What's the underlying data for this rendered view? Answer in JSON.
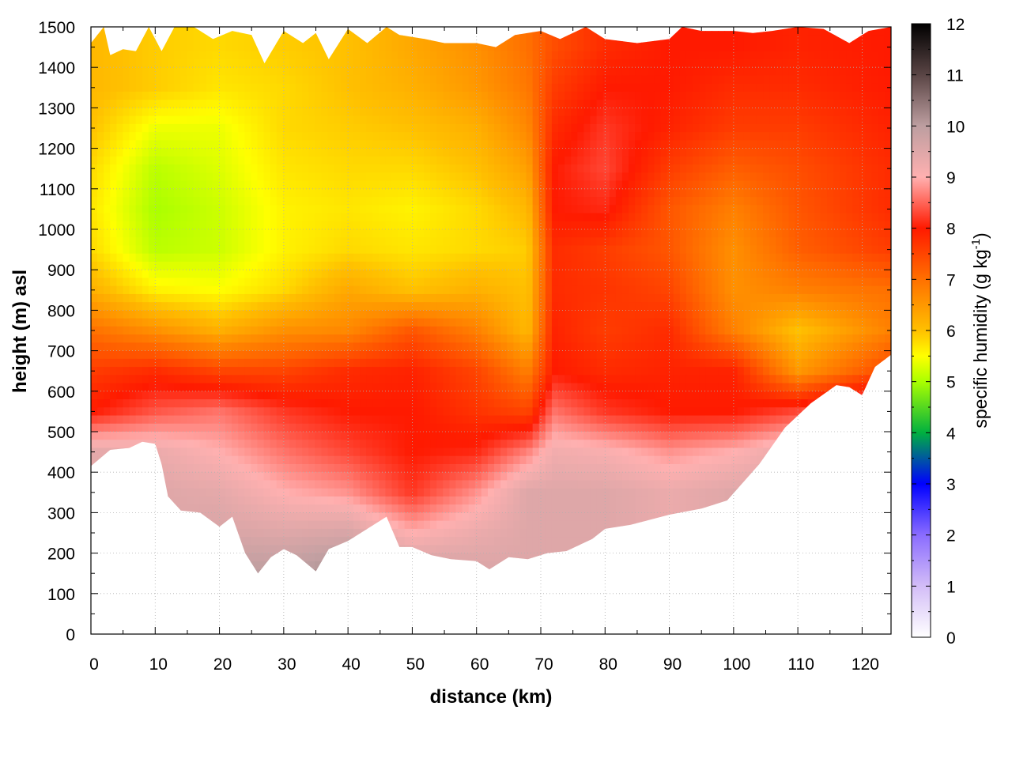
{
  "chart_data": {
    "type": "heatmap",
    "title": "",
    "xlabel": "distance (km)",
    "ylabel": "height (m) asl",
    "colorbar_label": {
      "prefix": "specific humidity (g kg",
      "superscript": "-1",
      "suffix": ")"
    },
    "xlim": [
      0,
      124.5
    ],
    "ylim": [
      0,
      1500
    ],
    "color_range": [
      0,
      12
    ],
    "x_ticks": [
      "0",
      "10",
      "20",
      "30",
      "40",
      "50",
      "60",
      "70",
      "80",
      "90",
      "100",
      "110",
      "120"
    ],
    "y_ticks": [
      "0",
      "100",
      "200",
      "300",
      "400",
      "500",
      "600",
      "700",
      "800",
      "900",
      "1000",
      "1100",
      "1200",
      "1300",
      "1400",
      "1500"
    ],
    "colorbar_ticks": [
      "0",
      "1",
      "2",
      "3",
      "4",
      "5",
      "6",
      "7",
      "8",
      "9",
      "10",
      "11",
      "12"
    ],
    "grid": true,
    "colormap": [
      [
        0,
        "#ffffff"
      ],
      [
        1,
        "#d3bdf7"
      ],
      [
        2,
        "#8a6cff"
      ],
      [
        3,
        "#0000ff"
      ],
      [
        4,
        "#00b040"
      ],
      [
        5,
        "#aaff00"
      ],
      [
        5.5,
        "#ffff00"
      ],
      [
        6,
        "#ffc000"
      ],
      [
        7,
        "#ff7000"
      ],
      [
        8,
        "#ff1a00"
      ],
      [
        9,
        "#ffb0b0"
      ],
      [
        10,
        "#bd9ea0"
      ],
      [
        11,
        "#5a4545"
      ],
      [
        12,
        "#000000"
      ]
    ],
    "ground_profile": {
      "x": [
        0,
        3,
        6,
        8,
        10,
        11,
        12,
        14,
        17,
        20,
        22,
        24,
        26,
        28,
        30,
        32,
        35,
        37,
        40,
        42,
        44,
        46,
        48,
        50,
        53,
        56,
        60,
        62,
        65,
        68,
        71,
        74,
        78,
        80,
        84,
        90,
        95,
        99,
        104,
        108,
        112,
        116,
        118,
        120,
        122,
        124.5
      ],
      "height_m": [
        415,
        455,
        460,
        475,
        470,
        420,
        340,
        305,
        300,
        265,
        290,
        200,
        150,
        190,
        210,
        195,
        155,
        210,
        230,
        250,
        270,
        290,
        215,
        215,
        195,
        185,
        180,
        160,
        190,
        185,
        200,
        205,
        235,
        260,
        270,
        295,
        310,
        330,
        420,
        510,
        570,
        615,
        610,
        590,
        660,
        690
      ]
    },
    "top_profile": {
      "x": [
        0,
        2,
        3,
        5,
        7,
        9,
        11,
        13,
        16,
        19,
        22,
        25,
        27,
        30,
        33,
        35,
        37,
        40,
        43,
        46,
        48,
        52,
        55,
        60,
        63,
        66,
        70,
        73,
        77,
        80,
        85,
        90,
        92,
        95,
        100,
        103,
        106,
        110,
        114,
        118,
        121,
        124.5
      ],
      "height_m": [
        1460,
        1500,
        1430,
        1445,
        1440,
        1500,
        1440,
        1500,
        1500,
        1470,
        1490,
        1480,
        1410,
        1490,
        1460,
        1485,
        1420,
        1495,
        1460,
        1500,
        1480,
        1470,
        1460,
        1460,
        1450,
        1480,
        1490,
        1470,
        1500,
        1470,
        1460,
        1470,
        1500,
        1490,
        1490,
        1485,
        1490,
        1500,
        1495,
        1460,
        1490,
        1500
      ]
    },
    "layers": [
      {
        "height_m": 0,
        "values": [
          9.5,
          9.5,
          10,
          10,
          10.3,
          9.8,
          9.6,
          9.5,
          9.5,
          9.5,
          9.3,
          9.5,
          9.5,
          10.3
        ]
      },
      {
        "height_m": 150,
        "values": [
          9.5,
          9.5,
          10,
          10,
          10.3,
          9.8,
          9.6,
          9.5,
          9.5,
          9.5,
          9.3,
          9.5,
          9.5,
          10.3
        ]
      },
      {
        "height_m": 250,
        "values": [
          9.5,
          9.5,
          9.6,
          9.5,
          9.6,
          9.0,
          9.3,
          9.5,
          9.5,
          9.5,
          9.3,
          9.5,
          9.5,
          10.0
        ]
      },
      {
        "height_m": 350,
        "values": [
          9.5,
          9.5,
          9.4,
          9.0,
          8.8,
          8.2,
          8.8,
          9.5,
          9.5,
          9.5,
          9.3,
          9.5,
          9.5,
          9.8
        ]
      },
      {
        "height_m": 450,
        "values": [
          9.4,
          9.3,
          9.0,
          8.6,
          8.3,
          8.0,
          8.1,
          8.7,
          9.2,
          9.1,
          8.8,
          9.0,
          9.4,
          9.5
        ]
      },
      {
        "height_m": 550,
        "values": [
          8.0,
          8.4,
          8.6,
          8.2,
          8.0,
          8.0,
          7.7,
          7.5,
          8.6,
          8.2,
          8.0,
          8.0,
          8.3,
          9.0
        ]
      },
      {
        "height_m": 650,
        "values": [
          7.6,
          7.8,
          7.5,
          7.5,
          7.8,
          7.9,
          7.5,
          6.8,
          8.0,
          7.8,
          7.9,
          7.9,
          6.5,
          7.5
        ]
      },
      {
        "height_m": 750,
        "values": [
          7.0,
          6.6,
          6.2,
          6.6,
          6.7,
          7.3,
          6.8,
          6.1,
          7.9,
          7.6,
          7.8,
          6.8,
          6.0,
          6.8
        ]
      },
      {
        "height_m": 850,
        "values": [
          6.2,
          5.6,
          5.5,
          5.8,
          6.3,
          6.0,
          6.2,
          6.0,
          7.8,
          7.7,
          7.5,
          6.6,
          6.8,
          7.0
        ]
      },
      {
        "height_m": 950,
        "values": [
          5.8,
          5.1,
          5.2,
          5.6,
          5.8,
          5.7,
          5.8,
          5.9,
          7.8,
          7.6,
          7.3,
          6.6,
          7.2,
          7.6
        ]
      },
      {
        "height_m": 1050,
        "values": [
          5.7,
          5.0,
          5.2,
          5.6,
          5.7,
          5.6,
          5.8,
          6.1,
          8.0,
          8.1,
          7.3,
          6.8,
          7.3,
          7.8
        ]
      },
      {
        "height_m": 1150,
        "values": [
          5.8,
          5.1,
          5.3,
          5.7,
          5.8,
          5.8,
          6.0,
          6.4,
          8.0,
          8.3,
          7.6,
          7.2,
          7.4,
          7.8
        ]
      },
      {
        "height_m": 1250,
        "values": [
          6.0,
          5.4,
          5.4,
          5.8,
          5.9,
          6.0,
          6.2,
          6.7,
          7.8,
          8.2,
          7.9,
          7.6,
          7.6,
          7.9
        ]
      },
      {
        "height_m": 1350,
        "values": [
          6.1,
          5.9,
          5.7,
          5.8,
          6.0,
          6.2,
          6.5,
          6.9,
          7.6,
          8.0,
          8.0,
          7.8,
          7.8,
          8.0
        ]
      },
      {
        "height_m": 1450,
        "values": [
          6.1,
          5.9,
          5.8,
          5.9,
          6.0,
          6.3,
          6.6,
          7.0,
          7.4,
          7.8,
          8.0,
          8.0,
          7.9,
          8.0
        ]
      },
      {
        "height_m": 1500,
        "values": [
          6.1,
          5.9,
          5.8,
          5.9,
          6.0,
          6.3,
          6.6,
          7.0,
          7.4,
          7.8,
          8.0,
          8.0,
          7.9,
          8.0
        ]
      }
    ],
    "layer_x": [
      0,
      10,
      20,
      30,
      40,
      50,
      60,
      68,
      72,
      80,
      90,
      100,
      110,
      124.5
    ]
  }
}
